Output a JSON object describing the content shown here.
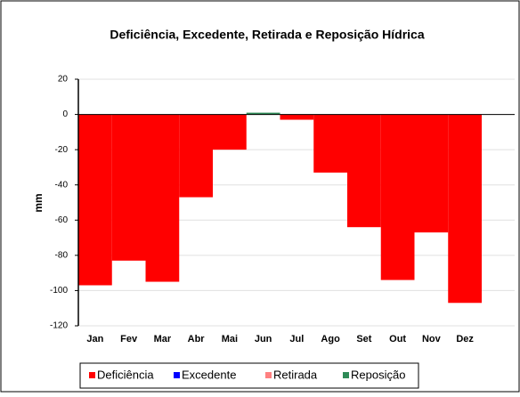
{
  "chart_data": {
    "type": "bar",
    "title": "Deficiência, Excedente, Retirada e Reposição Hídrica",
    "y_label": "mm",
    "categories": [
      "Jan",
      "Fev",
      "Mar",
      "Abr",
      "Mai",
      "Jun",
      "Jul",
      "Ago",
      "Set",
      "Out",
      "Nov",
      "Dez"
    ],
    "series": [
      {
        "name": "Deficiência",
        "color": "#ff0000",
        "values": [
          -97,
          -83,
          -95,
          -47,
          -20,
          0,
          -3,
          -33,
          -64,
          -94,
          -67,
          -107
        ]
      },
      {
        "name": "Excedente",
        "color": "#0000ff",
        "values": [
          0,
          0,
          0,
          0,
          0,
          0,
          0,
          0,
          0,
          0,
          0,
          0
        ]
      },
      {
        "name": "Retirada",
        "color": "#ff8080",
        "values": [
          0,
          0,
          0,
          0,
          0,
          0,
          0,
          0,
          0,
          0,
          0,
          0
        ]
      },
      {
        "name": "Reposição",
        "color": "#2e8b57",
        "values": [
          0,
          0,
          0,
          0,
          0,
          1,
          0,
          0,
          0,
          0,
          0,
          0
        ]
      }
    ],
    "ylim": [
      -120,
      20
    ],
    "yticks": [
      -120,
      -100,
      -80,
      -60,
      -40,
      -20,
      0,
      20
    ],
    "grid": true,
    "legend": "bottom"
  }
}
